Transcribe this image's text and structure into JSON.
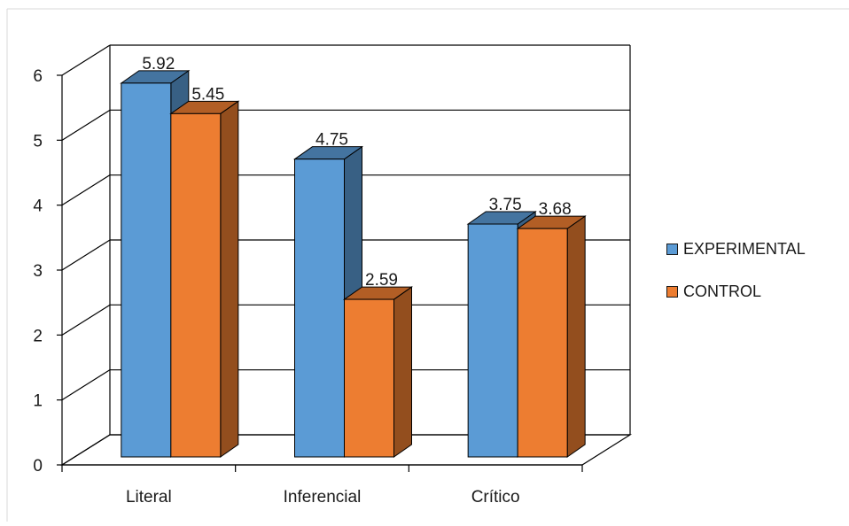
{
  "chart_data": {
    "type": "bar",
    "categories": [
      "Literal",
      "Inferencial",
      "Crítico"
    ],
    "series": [
      {
        "name": "EXPERIMENTAL",
        "values": [
          5.92,
          4.75,
          3.75
        ],
        "color": "#5b9bd5"
      },
      {
        "name": "CONTROL",
        "values": [
          5.45,
          2.59,
          3.68
        ],
        "color": "#ed7d31"
      }
    ],
    "data_labels": {
      "EXPERIMENTAL": [
        "5.92",
        "4.75",
        "3.75"
      ],
      "CONTROL": [
        "5.45",
        "2.59",
        "3.68"
      ]
    },
    "y_ticks": [
      "0",
      "1",
      "2",
      "3",
      "4",
      "5",
      "6"
    ],
    "ylim": [
      0,
      6
    ],
    "title": "",
    "xlabel": "",
    "ylabel": "",
    "grid": true,
    "legend_position": "right",
    "style": "3d-clustered-column"
  }
}
